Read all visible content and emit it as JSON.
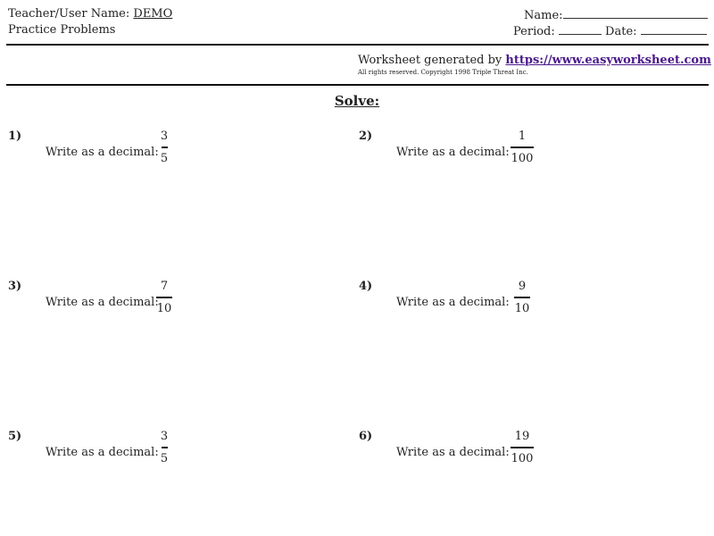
{
  "header": {
    "teacher_label": "Teacher/User Name:",
    "teacher_value": "DEMO",
    "subtitle": "Practice Problems",
    "name_label": "Name:",
    "period_label": "Period:",
    "date_label": "Date:"
  },
  "credit": {
    "text": "Worksheet generated by",
    "link": "https://www.easyworksheet.com",
    "copyright": "All rights reserved. Copyright 1998 Triple Threat Inc."
  },
  "title": "Solve:",
  "problems": [
    {
      "number": "1)",
      "prompt": "Write as a decimal:",
      "numerator": "3",
      "denominator": "5"
    },
    {
      "number": "2)",
      "prompt": "Write as a decimal:",
      "numerator": "1",
      "denominator": "100"
    },
    {
      "number": "3)",
      "prompt": "Write as a decimal:",
      "numerator": "7",
      "denominator": "10"
    },
    {
      "number": "4)",
      "prompt": "Write as a decimal:",
      "numerator": "9",
      "denominator": "10"
    },
    {
      "number": "5)",
      "prompt": "Write as a decimal:",
      "numerator": "3",
      "denominator": "5"
    },
    {
      "number": "6)",
      "prompt": "Write as a decimal:",
      "numerator": "19",
      "denominator": "100"
    }
  ]
}
